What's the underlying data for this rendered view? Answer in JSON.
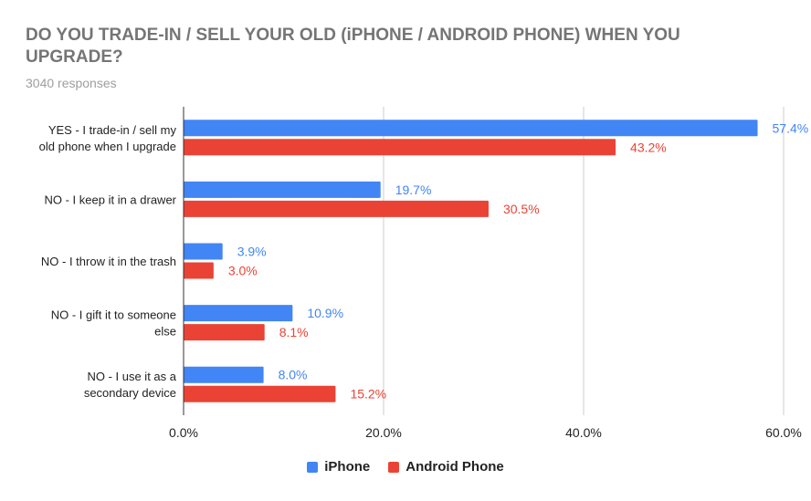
{
  "chart_data": {
    "type": "bar",
    "orientation": "horizontal",
    "title": "DO YOU TRADE-IN / SELL YOUR OLD (iPHONE / ANDROID PHONE) WHEN YOU UPGRADE?",
    "subtitle": "3040 responses",
    "categories": [
      [
        "YES - I trade-in / sell my",
        "old phone when I upgrade"
      ],
      [
        "NO - I keep it in a drawer"
      ],
      [
        "NO - I throw it in the trash"
      ],
      [
        "NO - I gift it to someone",
        "else"
      ],
      [
        "NO - I use it as a",
        "secondary device"
      ]
    ],
    "series": [
      {
        "name": "iPhone",
        "color": "#4285f4",
        "values": [
          57.4,
          19.7,
          3.9,
          10.9,
          8.0
        ],
        "labels": [
          "57.4%",
          "19.7%",
          "3.9%",
          "10.9%",
          "8.0%"
        ]
      },
      {
        "name": "Android Phone",
        "color": "#ea4335",
        "values": [
          43.2,
          30.5,
          3.0,
          8.1,
          15.2
        ],
        "labels": [
          "43.2%",
          "30.5%",
          "3.0%",
          "8.1%",
          "15.2%"
        ]
      }
    ],
    "xlim": [
      0,
      60
    ],
    "xticks": [
      0,
      20,
      40,
      60
    ],
    "xtick_labels": [
      "0.0%",
      "20.0%",
      "40.0%",
      "60.0%"
    ],
    "grid": true,
    "legend_position": "bottom"
  }
}
